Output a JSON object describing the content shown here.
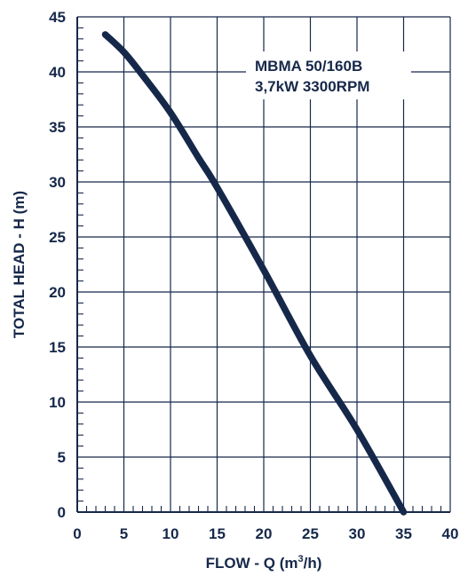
{
  "chart_data": {
    "type": "line",
    "title": "",
    "xlabel_prefix": "FLOW - Q (m",
    "xlabel_sup": "3",
    "xlabel_suffix": "/h)",
    "ylabel": "TOTAL HEAD - H (m)",
    "xlim": [
      0,
      40
    ],
    "ylim": [
      0,
      45
    ],
    "x_ticks": [
      0,
      5,
      10,
      15,
      20,
      25,
      30,
      35,
      40
    ],
    "y_ticks": [
      0,
      5,
      10,
      15,
      20,
      25,
      30,
      35,
      40,
      45
    ],
    "x_minor_step": 1,
    "y_minor_step": 1,
    "grid": true,
    "annotation": {
      "line1": "MBMA 50/160B",
      "line2": "3,7kW 3300RPM"
    },
    "series": [
      {
        "color": "#16284a",
        "x": [
          3,
          5,
          7,
          10,
          13,
          15,
          20,
          25,
          30,
          35
        ],
        "y": [
          43.4,
          41.8,
          39.7,
          36.3,
          32.2,
          29.5,
          22.0,
          14.2,
          7.5,
          0.0
        ]
      }
    ],
    "colors": {
      "text": "#16284a",
      "axis": "#16284a",
      "grid": "#16284a",
      "curve": "#16284a"
    }
  }
}
